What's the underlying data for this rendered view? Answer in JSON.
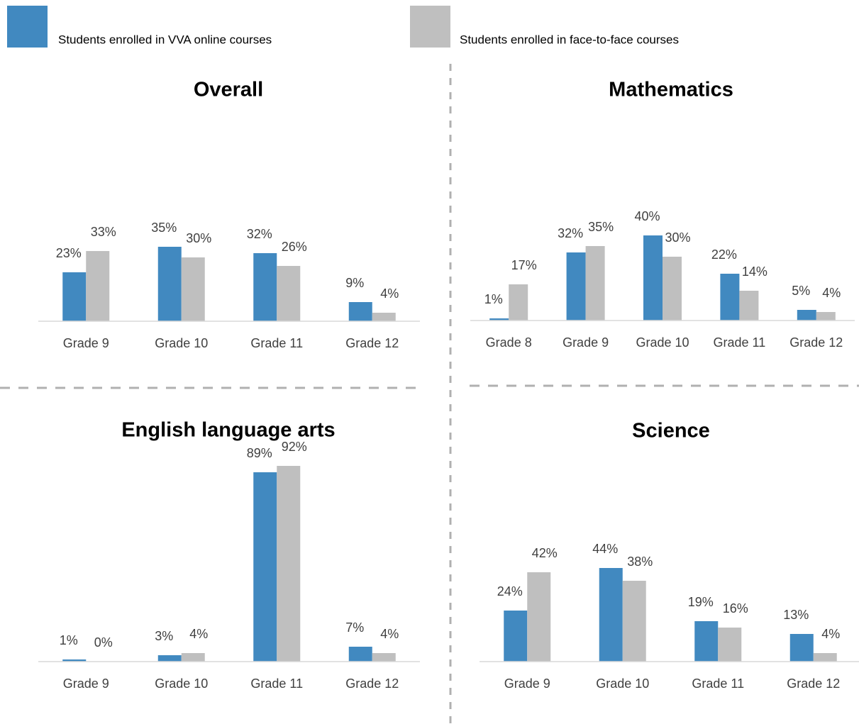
{
  "legend": {
    "series": [
      {
        "name": "Students enrolled in VVA online courses",
        "color": "#4189c0"
      },
      {
        "name": "Students enrolled in face-to-face courses",
        "color": "#bfbfbf"
      }
    ]
  },
  "chart_data": [
    {
      "type": "bar",
      "title": "Overall",
      "categories": [
        "Grade 9",
        "Grade 10",
        "Grade 11",
        "Grade 12"
      ],
      "ylim": [
        0,
        100
      ],
      "series": [
        {
          "values": [
            23,
            35,
            32,
            9
          ],
          "value_labels": [
            "23%",
            "35%",
            "32%",
            "9%"
          ]
        },
        {
          "values": [
            33,
            30,
            26,
            4
          ],
          "value_labels": [
            "33%",
            "30%",
            "26%",
            "4%"
          ]
        }
      ]
    },
    {
      "type": "bar",
      "title": "Mathematics",
      "categories": [
        "Grade 8",
        "Grade 9",
        "Grade 10",
        "Grade 11",
        "Grade 12"
      ],
      "ylim": [
        0,
        100
      ],
      "series": [
        {
          "values": [
            1,
            32,
            40,
            22,
            5
          ],
          "value_labels": [
            "1%",
            "32%",
            "40%",
            "22%",
            "5%"
          ]
        },
        {
          "values": [
            17,
            35,
            30,
            14,
            4
          ],
          "value_labels": [
            "17%",
            "35%",
            "30%",
            "14%",
            "4%"
          ]
        }
      ]
    },
    {
      "type": "bar",
      "title": "English language arts",
      "categories": [
        "Grade 9",
        "Grade 10",
        "Grade 11",
        "Grade 12"
      ],
      "ylim": [
        0,
        100
      ],
      "series": [
        {
          "values": [
            1,
            3,
            89,
            7
          ],
          "value_labels": [
            "1%",
            "3%",
            "89%",
            "7%"
          ]
        },
        {
          "values": [
            0,
            4,
            92,
            4
          ],
          "value_labels": [
            "0%",
            "4%",
            "92%",
            "4%"
          ]
        }
      ]
    },
    {
      "type": "bar",
      "title": "Science",
      "categories": [
        "Grade 9",
        "Grade 10",
        "Grade 11",
        "Grade 12"
      ],
      "ylim": [
        0,
        100
      ],
      "series": [
        {
          "values": [
            24,
            44,
            19,
            13
          ],
          "value_labels": [
            "24%",
            "44%",
            "19%",
            "13%"
          ]
        },
        {
          "values": [
            42,
            38,
            16,
            4
          ],
          "value_labels": [
            "42%",
            "38%",
            "16%",
            "4%"
          ]
        }
      ]
    }
  ]
}
